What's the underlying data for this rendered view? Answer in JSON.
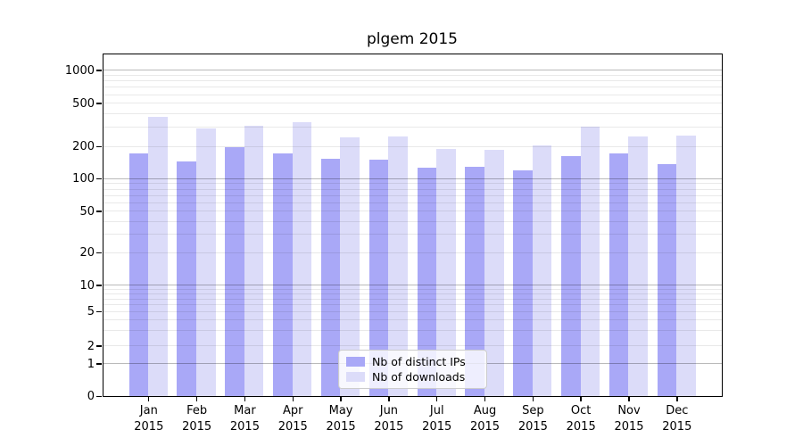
{
  "figure": {
    "title": "plgem 2015"
  },
  "chart_data": {
    "type": "bar",
    "title": "plgem 2015",
    "categories": [
      "Jan 2015",
      "Feb 2015",
      "Mar 2015",
      "Apr 2015",
      "May 2015",
      "Jun 2015",
      "Jul 2015",
      "Aug 2015",
      "Sep 2015",
      "Oct 2015",
      "Nov 2015",
      "Dec 2015"
    ],
    "series": [
      {
        "name": "Nb of distinct IPs",
        "color": "#a9a8f7",
        "values": [
          174,
          148,
          199,
          174,
          156,
          153,
          129,
          130,
          122,
          166,
          174,
          139
        ]
      },
      {
        "name": "Nb of downloads",
        "color": "#dcdcf9",
        "values": [
          378,
          300,
          315,
          343,
          247,
          253,
          194,
          190,
          207,
          312,
          251,
          258
        ]
      }
    ],
    "xlabel": "",
    "ylabel": "",
    "yscale": "symlog",
    "y_ticks": [
      0,
      1,
      2,
      5,
      10,
      20,
      50,
      100,
      200,
      500,
      1000
    ],
    "ylim": [
      0,
      1400
    ],
    "grid": "horizontal major at 1/10/100/1000, minor at 2-9 multiples",
    "legend_position": "lower center"
  },
  "colors": {
    "grid_major": "rgba(0,0,0,0.27)",
    "grid_minor": "rgba(0,0,0,0.085)",
    "axis": "#000000",
    "legend_border": "#cccccc"
  }
}
